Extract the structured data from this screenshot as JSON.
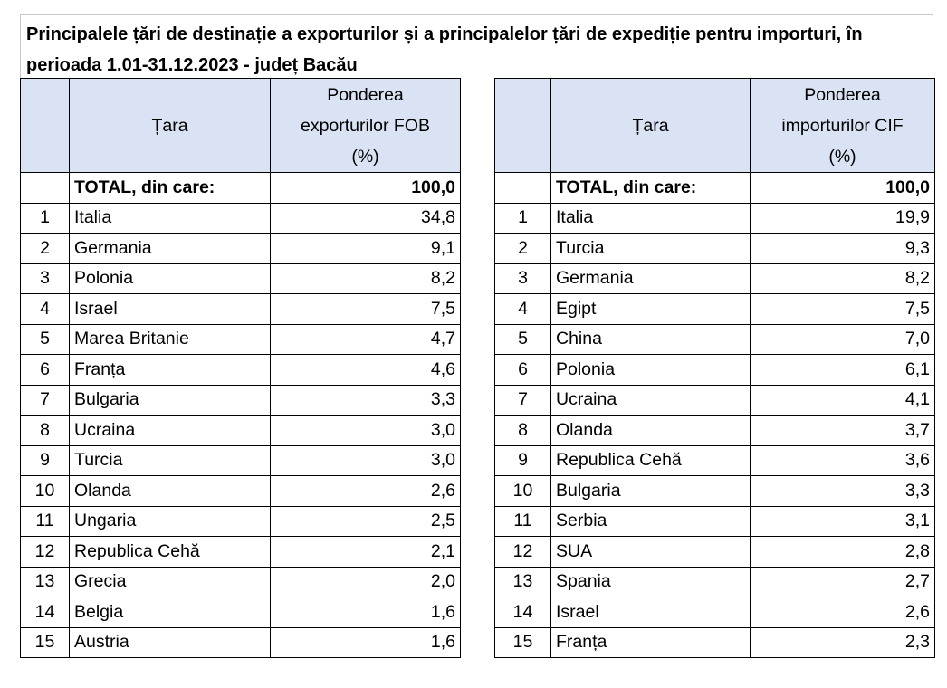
{
  "title": "Principalele țări de destinație a exporturilor și a principalelor țări de expediție pentru importuri, în perioada 1.01-31.12.2023 - județ Bacău",
  "tables": [
    {
      "header": {
        "country": "Țara",
        "share": [
          "Ponderea",
          "exporturilor FOB",
          "(%)"
        ]
      },
      "total": {
        "label": "TOTAL, din care:",
        "value": "100,0"
      },
      "rows": [
        [
          "1",
          "Italia",
          "34,8"
        ],
        [
          "2",
          "Germania",
          "9,1"
        ],
        [
          "3",
          "Polonia",
          "8,2"
        ],
        [
          "4",
          "Israel",
          "7,5"
        ],
        [
          "5",
          "Marea Britanie",
          "4,7"
        ],
        [
          "6",
          "Franța",
          "4,6"
        ],
        [
          "7",
          "Bulgaria",
          "3,3"
        ],
        [
          "8",
          "Ucraina",
          "3,0"
        ],
        [
          "9",
          "Turcia",
          "3,0"
        ],
        [
          "10",
          "Olanda",
          "2,6"
        ],
        [
          "11",
          "Ungaria",
          "2,5"
        ],
        [
          "12",
          "Republica Cehă",
          "2,1"
        ],
        [
          "13",
          "Grecia",
          "2,0"
        ],
        [
          "14",
          "Belgia",
          "1,6"
        ],
        [
          "15",
          "Austria",
          "1,6"
        ]
      ]
    },
    {
      "header": {
        "country": "Țara",
        "share": [
          "Ponderea",
          "importurilor CIF",
          "(%)"
        ]
      },
      "total": {
        "label": "TOTAL, din care:",
        "value": "100,0"
      },
      "rows": [
        [
          "1",
          "Italia",
          "19,9"
        ],
        [
          "2",
          "Turcia",
          "9,3"
        ],
        [
          "3",
          "Germania",
          "8,2"
        ],
        [
          "4",
          "Egipt",
          "7,5"
        ],
        [
          "5",
          "China",
          "7,0"
        ],
        [
          "6",
          "Polonia",
          "6,1"
        ],
        [
          "7",
          "Ucraina",
          "4,1"
        ],
        [
          "8",
          "Olanda",
          "3,7"
        ],
        [
          "9",
          "Republica Cehă",
          "3,6"
        ],
        [
          "10",
          "Bulgaria",
          "3,3"
        ],
        [
          "11",
          "Serbia",
          "3,1"
        ],
        [
          "12",
          "SUA",
          "2,8"
        ],
        [
          "13",
          "Spania",
          "2,7"
        ],
        [
          "14",
          "Israel",
          "2,6"
        ],
        [
          "15",
          "Franța",
          "2,3"
        ]
      ]
    }
  ]
}
